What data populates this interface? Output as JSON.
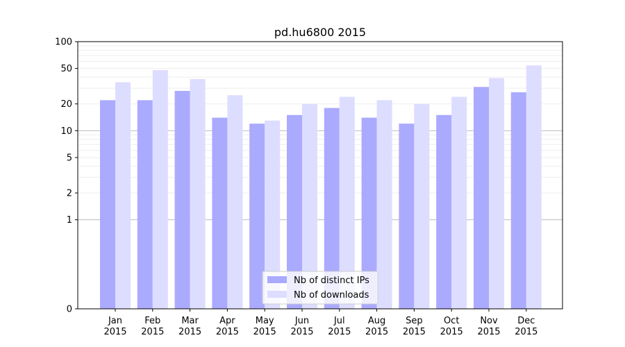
{
  "chart_data": {
    "type": "bar",
    "title": "pd.hu6800 2015",
    "xlabel": "",
    "ylabel": "",
    "yscale": "symlog",
    "ylim": [
      0,
      100
    ],
    "yticks": [
      0,
      1,
      2,
      5,
      10,
      20,
      50,
      100
    ],
    "grid": "horizontal",
    "legend_position": "bottom-center",
    "categories": [
      "Jan\n2015",
      "Feb\n2015",
      "Mar\n2015",
      "Apr\n2015",
      "May\n2015",
      "Jun\n2015",
      "Jul\n2015",
      "Aug\n2015",
      "Sep\n2015",
      "Oct\n2015",
      "Nov\n2015",
      "Dec\n2015"
    ],
    "series": [
      {
        "name": "Nb of distinct IPs",
        "color": "#aaaaff",
        "values": [
          22,
          22,
          28,
          14,
          12,
          15,
          18,
          14,
          12,
          15,
          31,
          27
        ]
      },
      {
        "name": "Nb of downloads",
        "color": "#ddddff",
        "values": [
          35,
          48,
          38,
          25,
          13,
          20,
          24,
          22,
          20,
          24,
          39,
          54
        ]
      }
    ]
  }
}
